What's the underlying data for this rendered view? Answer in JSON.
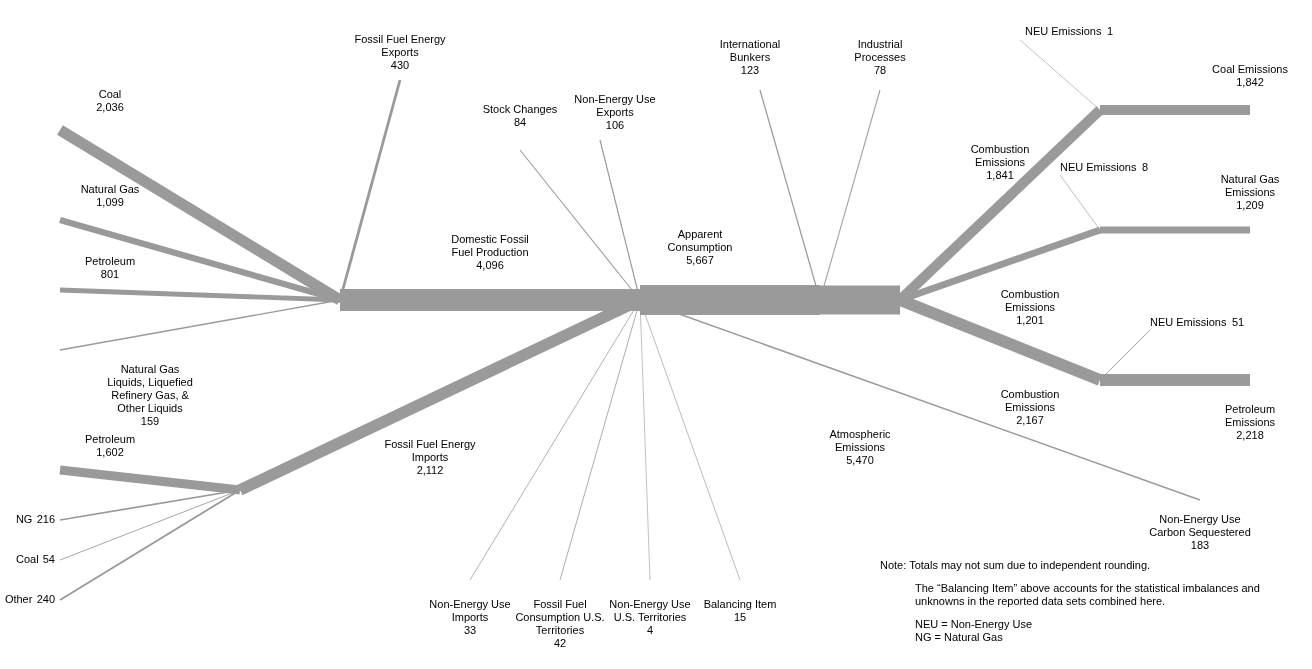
{
  "chart_data": {
    "type": "other",
    "categories": [
      "Fossil Fuel Energy Exports",
      "Stock Changes",
      "Non-Energy Use Exports",
      "International Bunkers",
      "Industrial Processes",
      "NEU Emissions",
      "Coal Emissions",
      "Combustion Emissions",
      "NEU Emissions",
      "Natural Gas Emissions",
      "Combustion Emissions",
      "NEU Emissions",
      "Petroleum Emissions",
      "Combustion Emissions",
      "Coal",
      "Domestic Fossil Fuel Production",
      "Natural Gas",
      "Petroleum",
      "Natural Gas Liquids, Liquefied Refinery Gas, & Other Liquids",
      "Apparent Consumption",
      "Atmospheric Emissions",
      "Fossil Fuel Energy Imports",
      "Petroleum",
      "NG",
      "Coal",
      "Other",
      "Non-Energy Use Imports",
      "Fossil Fuel Consumption U.S. Territories",
      "Non-Energy Use U.S. Territories",
      "Balancing Item",
      "Non-Energy Use Carbon Sequestered"
    ],
    "values": [
      430,
      84,
      106,
      123,
      78,
      1,
      1842,
      1841,
      8,
      1209,
      1201,
      51,
      2218,
      2167,
      2036,
      4096,
      1099,
      801,
      159,
      5667,
      5470,
      2112,
      1602,
      216,
      54,
      240,
      33,
      42,
      4,
      15,
      183
    ],
    "value_labels": [
      "430",
      "84",
      "106",
      "123",
      "78",
      "1",
      "1,842",
      "1,841",
      "8",
      "1,209",
      "1,201",
      "51",
      "2,218",
      "2,167",
      "2,036",
      "4,096",
      "1,099",
      "801",
      "159",
      "5,667",
      "5,470",
      "2,112",
      "1,602",
      "216",
      "54",
      "240",
      "33",
      "42",
      "4",
      "15",
      "183"
    ],
    "annotations": [
      "Note:  Totals may not sum due to independent rounding.",
      "The “Balancing Item” above accounts for the statistical imbalances and unknowns in the reported data sets combined here.",
      "NEU = Non-Energy Use",
      "NG = Natural Gas"
    ]
  }
}
